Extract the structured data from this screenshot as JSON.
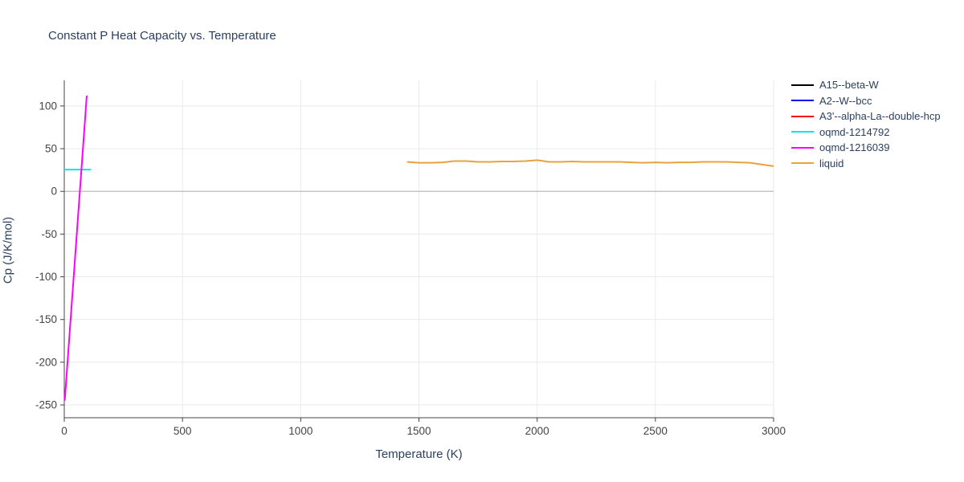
{
  "colors": {
    "background": "#ffffff",
    "grid": "#e8eaec",
    "zeroline": "#c4c4c4",
    "axis": "#444444",
    "tick_label": "#444444",
    "text": "#2a3f5f"
  },
  "chart_data": {
    "type": "line",
    "title": "Constant P Heat Capacity vs. Temperature",
    "xlabel": "Temperature (K)",
    "ylabel": "Cp (J/K/mol)",
    "xlim": [
      0,
      3000
    ],
    "ylim": [
      -265,
      130
    ],
    "xticks": [
      0,
      500,
      1000,
      1500,
      2000,
      2500,
      3000
    ],
    "yticks": [
      -250,
      -200,
      -150,
      -100,
      -50,
      0,
      50,
      100
    ],
    "grid": true,
    "zeroline": true,
    "legend_position": "outside-top-right",
    "series": [
      {
        "name": "A15--beta-W",
        "color": "#000000",
        "x": [],
        "y": []
      },
      {
        "name": "A2--W--bcc",
        "color": "#0000ff",
        "x": [],
        "y": []
      },
      {
        "name": "A3'--alpha-La--double-hcp",
        "color": "#ff0000",
        "x": [],
        "y": []
      },
      {
        "name": "oqmd-1214792",
        "color": "#00e5ee",
        "x": [
          0,
          112
        ],
        "y": [
          25.5,
          25.5
        ]
      },
      {
        "name": "oqmd-1216039",
        "color": "#ff00ff",
        "x": [
          2,
          95
        ],
        "y": [
          -245,
          112
        ]
      },
      {
        "name": "liquid",
        "color": "#e8a33d",
        "x": [
          1450,
          1500,
          1550,
          1600,
          1650,
          1700,
          1750,
          1800,
          1850,
          1900,
          1950,
          2000,
          2050,
          2100,
          2150,
          2200,
          2250,
          2300,
          2350,
          2400,
          2450,
          2500,
          2550,
          2600,
          2650,
          2700,
          2750,
          2800,
          2850,
          2900,
          2950,
          3000
        ],
        "y": [
          34.5,
          33.5,
          33.5,
          34,
          35.5,
          35.5,
          34.5,
          34.5,
          35,
          35,
          35.5,
          36.5,
          34.5,
          34.5,
          35,
          34.5,
          34.5,
          34.5,
          34.5,
          34,
          33.5,
          34,
          33.5,
          34,
          34,
          34.5,
          34.5,
          34.5,
          34,
          33.5,
          31.5,
          29.5
        ]
      }
    ]
  }
}
